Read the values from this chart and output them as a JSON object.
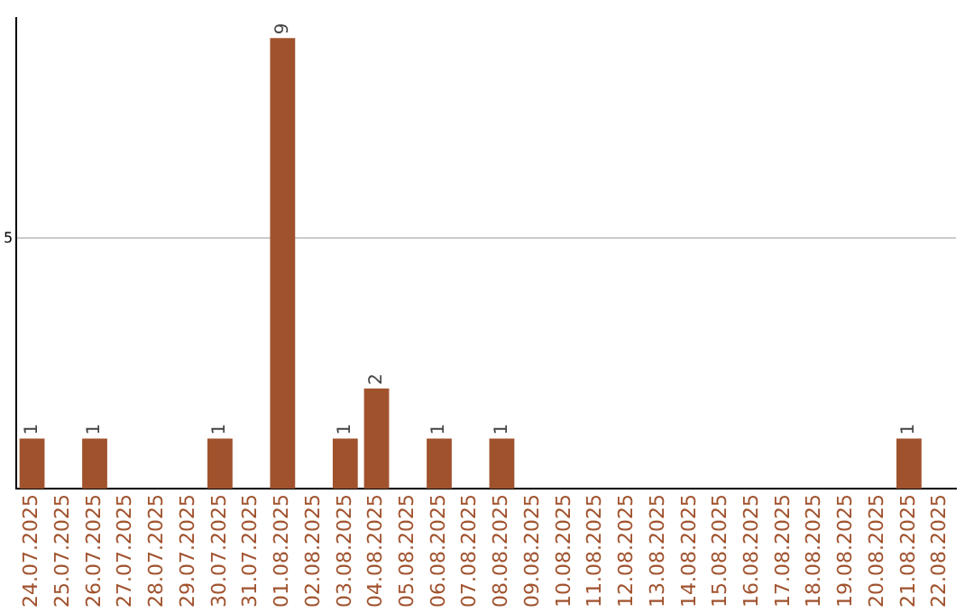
{
  "chart_data": {
    "type": "bar",
    "categories": [
      "24.07.2025",
      "25.07.2025",
      "26.07.2025",
      "27.07.2025",
      "28.07.2025",
      "29.07.2025",
      "30.07.2025",
      "31.07.2025",
      "01.08.2025",
      "02.08.2025",
      "03.08.2025",
      "04.08.2025",
      "05.08.2025",
      "06.08.2025",
      "07.08.2025",
      "08.08.2025",
      "09.08.2025",
      "10.08.2025",
      "11.08.2025",
      "12.08.2025",
      "13.08.2025",
      "14.08.2025",
      "15.08.2025",
      "16.08.2025",
      "17.08.2025",
      "18.08.2025",
      "19.08.2025",
      "20.08.2025",
      "21.08.2025",
      "22.08.2025"
    ],
    "values": [
      1,
      0,
      1,
      0,
      0,
      0,
      1,
      0,
      9,
      0,
      1,
      2,
      0,
      1,
      0,
      1,
      0,
      0,
      0,
      0,
      0,
      0,
      0,
      0,
      0,
      0,
      0,
      0,
      1,
      0
    ],
    "value_labels": [
      "1",
      null,
      "1",
      null,
      null,
      null,
      "1",
      null,
      "9",
      null,
      "1",
      "2",
      null,
      "1",
      null,
      "1",
      null,
      null,
      null,
      null,
      null,
      null,
      null,
      null,
      null,
      null,
      null,
      null,
      "1",
      null
    ],
    "color": "#a0522d",
    "ylim": [
      0,
      9.4
    ],
    "yticks": [
      5
    ],
    "grid": "y",
    "legend": false
  }
}
